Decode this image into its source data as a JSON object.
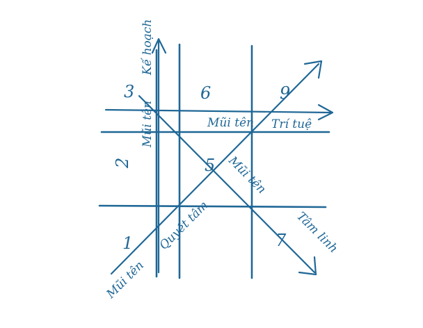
{
  "diagram": {
    "ink_color": "#1f6796",
    "numbers": {
      "n1": "1",
      "n2": "2",
      "n3": "3",
      "n5": "5",
      "n6": "6",
      "n7": "7",
      "n9": "9"
    },
    "arrows": {
      "ke_hoach": {
        "part1": "Mũi tên",
        "part2": "Kế hoạch"
      },
      "tri_tue": {
        "part1": "Mũi tên",
        "part2": "Trí tuệ"
      },
      "tam_linh": {
        "part1": "Mũi tên",
        "part2": "Tâm linh"
      },
      "quyet_tam": {
        "part1": "Mũi tên",
        "part2": "Quyết tâm"
      }
    }
  }
}
